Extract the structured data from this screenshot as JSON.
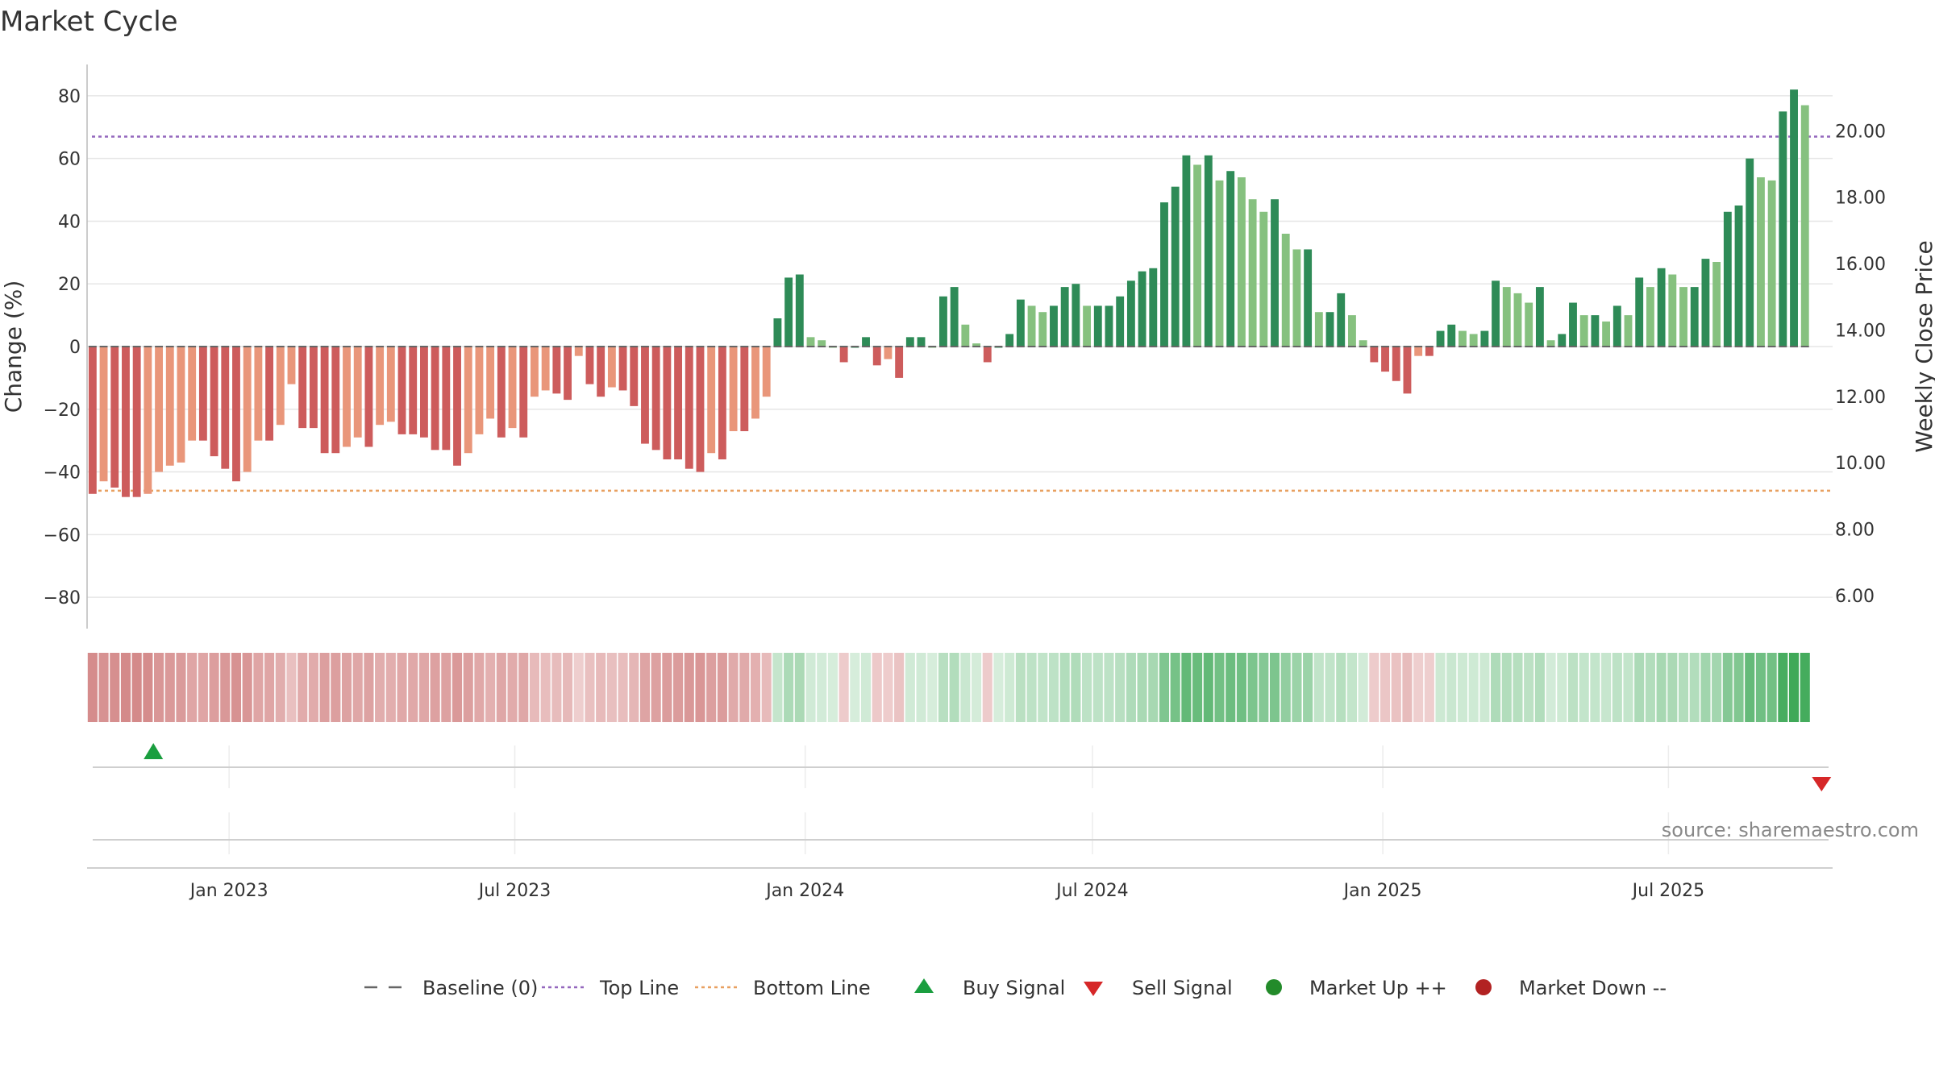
{
  "chart_data": {
    "type": "bar",
    "title": "Market Cycle",
    "ylabel": "Change (%)",
    "y2label": "Weekly Close Price",
    "ylim": [
      -90,
      90
    ],
    "y2lim": [
      5.0,
      22.0
    ],
    "yticks": [
      "80",
      "60",
      "40",
      "20",
      "0",
      "−20",
      "−40",
      "−60",
      "−80"
    ],
    "yticks_values": [
      80,
      60,
      40,
      20,
      0,
      -20,
      -40,
      -60,
      -80
    ],
    "y2ticks": [
      "20.00",
      "18.00",
      "16.00",
      "14.00",
      "12.00",
      "10.00",
      "8.00",
      "6.00"
    ],
    "y2ticks_values": [
      20,
      18,
      16,
      14,
      12,
      10,
      8,
      6
    ],
    "xlim": [
      "2022-10-03",
      "2025-10-13"
    ],
    "xticks": [
      {
        "date": "2023-01-01",
        "label": "Jan 2023"
      },
      {
        "date": "2023-07-01",
        "label": "Jul 2023"
      },
      {
        "date": "2024-01-01",
        "label": "Jan 2024"
      },
      {
        "date": "2024-07-01",
        "label": "Jul 2024"
      },
      {
        "date": "2025-01-01",
        "label": "Jan 2025"
      },
      {
        "date": "2025-07-01",
        "label": "Jul 2025"
      }
    ],
    "start_week": "2022-10-03",
    "top_line": 67,
    "bottom_line": -46,
    "series": [
      {
        "name": "Change (%)",
        "values": [
          -47,
          -43,
          -45,
          -48,
          -48,
          -47,
          -40,
          -38,
          -37,
          -30,
          -30,
          -35,
          -39,
          -43,
          -40,
          -30,
          -30,
          -25,
          -12,
          -26,
          -26,
          -34,
          -34,
          -32,
          -29,
          -32,
          -25,
          -24,
          -28,
          -28,
          -29,
          -33,
          -33,
          -38,
          -34,
          -28,
          -23,
          -29,
          -26,
          -29,
          -16,
          -14,
          -15,
          -17,
          -3,
          -12,
          -16,
          -13,
          -14,
          -19,
          -31,
          -33,
          -36,
          -36,
          -39,
          -40,
          -34,
          -36,
          -27,
          -27,
          -23,
          -16,
          9,
          22,
          23,
          3,
          2,
          0,
          -5,
          0,
          3,
          -6,
          -4,
          -10,
          3,
          3,
          0,
          16,
          19,
          7,
          1,
          -5,
          0,
          4,
          15,
          13,
          11,
          13,
          19,
          20,
          13,
          13,
          13,
          16,
          21,
          24,
          25,
          46,
          51,
          61,
          58,
          61,
          53,
          56,
          54,
          47,
          43,
          47,
          36,
          31,
          31,
          11,
          11,
          17,
          10,
          2,
          -5,
          -8,
          -11,
          -15,
          -3,
          -3,
          5,
          7,
          5,
          4,
          5,
          21,
          19,
          17,
          14,
          19,
          2,
          4,
          14,
          10,
          10,
          8,
          13,
          10,
          22,
          19,
          25,
          23,
          19,
          19,
          28,
          27,
          43,
          45,
          60,
          54,
          53,
          75,
          82,
          77
        ]
      }
    ],
    "cycle_strip_note": "Lower band shows a colour strip, one cell per week, shading from red (market down) to green (market up).",
    "signals": [
      {
        "type": "buy",
        "date": "2022-11-14"
      },
      {
        "type": "sell",
        "date": "2025-10-06"
      }
    ],
    "legend": [
      {
        "label": "Baseline (0)",
        "type": "dash",
        "color": "#666666"
      },
      {
        "label": "Top Line",
        "type": "dot",
        "color": "#9467bd"
      },
      {
        "label": "Bottom Line",
        "type": "dot",
        "color": "#e8a060"
      },
      {
        "label": "Buy Signal",
        "type": "tri-up",
        "color": "#1a9e3f"
      },
      {
        "label": "Sell Signal",
        "type": "tri-down",
        "color": "#d62728"
      },
      {
        "label": "Market Up ++",
        "type": "dot-circle",
        "color": "#238b2a"
      },
      {
        "label": "Market Down --",
        "type": "dot-circle",
        "color": "#b22222"
      }
    ],
    "legend_position": "bottom",
    "grid": true,
    "colors": {
      "pos_dark": "#2e8b57",
      "pos_light": "#86c17f",
      "neg_dark": "#cd5c5c",
      "neg_light": "#e9967a"
    }
  },
  "source": "source: sharemaestro.com"
}
